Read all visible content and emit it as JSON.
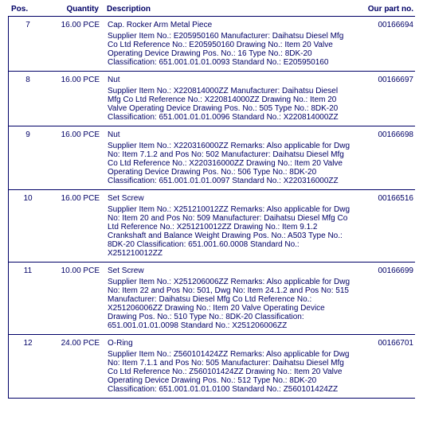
{
  "headers": {
    "pos": "Pos.",
    "qty": "Quantity",
    "desc": "Description",
    "part": "Our part no."
  },
  "rows": [
    {
      "pos": "7",
      "qty": "16.00 PCE",
      "title": "Cap. Rocker Arm Metal Piece",
      "details": "Supplier Item No.: E205950160 Manufacturer: Daihatsu Diesel Mfg Co Ltd Reference No.: E205950160 Drawing No.: Item 20 Valve Operating Device Drawing Pos. No.: 16 Type No.: 8DK-20 Classification: 651.001.01.01.0093 Standard No.: E205950160",
      "part": "00166694"
    },
    {
      "pos": "8",
      "qty": "16.00 PCE",
      "title": "Nut",
      "details": "Supplier Item No.: X220814000ZZ Manufacturer: Daihatsu Diesel Mfg Co Ltd Reference No.: X220814000ZZ Drawing No.: Item 20 Valve Operating Device Drawing Pos. No.: 505 Type No.: 8DK-20 Classification: 651.001.01.01.0096 Standard No.: X220814000ZZ",
      "part": "00166697"
    },
    {
      "pos": "9",
      "qty": "16.00 PCE",
      "title": "Nut",
      "details": "Supplier Item No.: X220316000ZZ Remarks: Also applicable for Dwg No: Item 7.1.2 and Pos No: 502 Manufacturer: Daihatsu Diesel Mfg Co Ltd Reference No.: X220316000ZZ Drawing No.: Item 20 Valve Operating Device Drawing Pos. No.: 506 Type No.: 8DK-20 Classification: 651.001.01.01.0097 Standard No.: X220316000ZZ",
      "part": "00166698"
    },
    {
      "pos": "10",
      "qty": "16.00 PCE",
      "title": "Set Screw",
      "details": "Supplier Item No.: X251210012ZZ Remarks: Also applicable for Dwg No: Item 20 and Pos No: 509 Manufacturer: Daihatsu Diesel Mfg Co Ltd Reference No.: X251210012ZZ Drawing No.: Item 9.1.2 Crankshaft and Balance Weight Drawing Pos. No.: A503 Type No.: 8DK-20 Classification: 651.001.60.0008 Standard No.: X251210012ZZ",
      "part": "00166516"
    },
    {
      "pos": "11",
      "qty": "10.00 PCE",
      "title": "Set Screw",
      "details": "Supplier Item No.: X251206006ZZ Remarks: Also applicable for Dwg No: Item 22 and Pos No: 501, Dwg No: Item 24.1.2 and Pos No: 515 Manufacturer: Daihatsu Diesel Mfg Co Ltd Reference No.: X251206006ZZ Drawing No.: Item 20 Valve Operating Device Drawing Pos. No.: 510 Type No.: 8DK-20 Classification: 651.001.01.01.0098 Standard No.: X251206006ZZ",
      "part": "00166699"
    },
    {
      "pos": "12",
      "qty": "24.00 PCE",
      "title": "O-Ring",
      "details": "Supplier Item No.: Z560101424ZZ Remarks: Also applicable for Dwg No: Item 7.1.1 and Pos No: 505 Manufacturer: Daihatsu Diesel Mfg Co Ltd Reference No.: Z560101424ZZ Drawing No.: Item 20 Valve Operating Device Drawing Pos. No.: 512 Type No.: 8DK-20 Classification: 651.001.01.01.0100 Standard No.: Z560101424ZZ",
      "part": "00166701"
    }
  ]
}
